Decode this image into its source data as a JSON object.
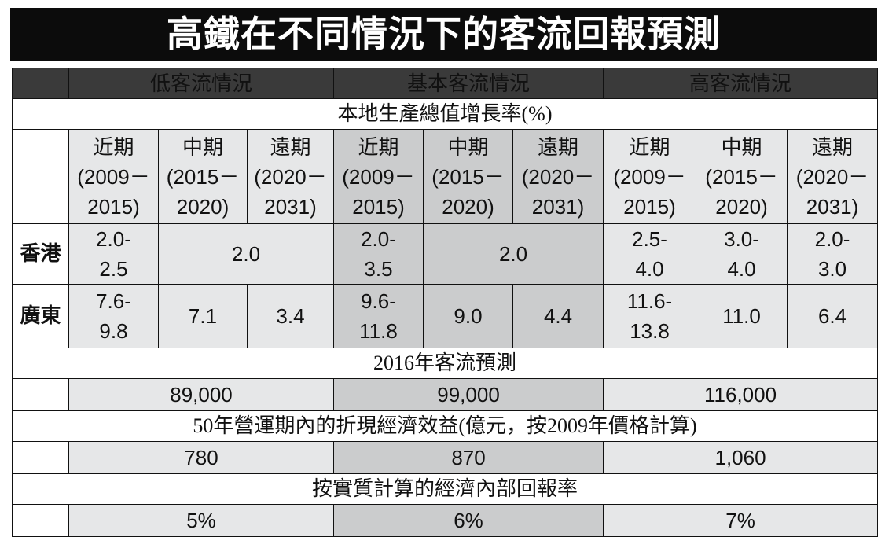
{
  "title": "高鐵在不同情況下的客流回報預測",
  "scenarios": [
    "低客流情況",
    "基本客流情況",
    "高客流情況"
  ],
  "sections": {
    "gdp": "本地生產總值增長率(%)",
    "forecast": "2016年客流預測",
    "benefit": "50年營運期內的折現經濟效益(億元，按2009年價格計算)",
    "irr": "按實質計算的經濟內部回報率"
  },
  "periods": [
    {
      "name": "近期",
      "range1": "(2009－",
      "range2": "2015)"
    },
    {
      "name": "中期",
      "range1": "(2015－",
      "range2": "2020)"
    },
    {
      "name": "遠期",
      "range1": "(2020－",
      "range2": "2031)"
    }
  ],
  "rows": {
    "hk": {
      "label": "香港",
      "low": {
        "near1": "2.0-",
        "near2": "2.5",
        "midfar": "2.0"
      },
      "base": {
        "near1": "2.0-",
        "near2": "3.5",
        "midfar": "2.0"
      },
      "high": {
        "near1": "2.5-",
        "near2": "4.0",
        "mid1": "3.0-",
        "mid2": "4.0",
        "far1": "2.0-",
        "far2": "3.0"
      }
    },
    "gd": {
      "label": "廣東",
      "low": {
        "near1": "7.6-",
        "near2": "9.8",
        "mid": "7.1",
        "far": "3.4"
      },
      "base": {
        "near1": "9.6-",
        "near2": "11.8",
        "mid": "9.0",
        "far": "4.4"
      },
      "high": {
        "near1": "11.6-",
        "near2": "13.8",
        "mid": "11.0",
        "far": "6.4"
      }
    }
  },
  "forecast": {
    "low": "89,000",
    "base": "99,000",
    "high": "116,000"
  },
  "benefit": {
    "low": "780",
    "base": "870",
    "high": "1,060"
  },
  "irr": {
    "low": "5%",
    "base": "6%",
    "high": "7%"
  }
}
